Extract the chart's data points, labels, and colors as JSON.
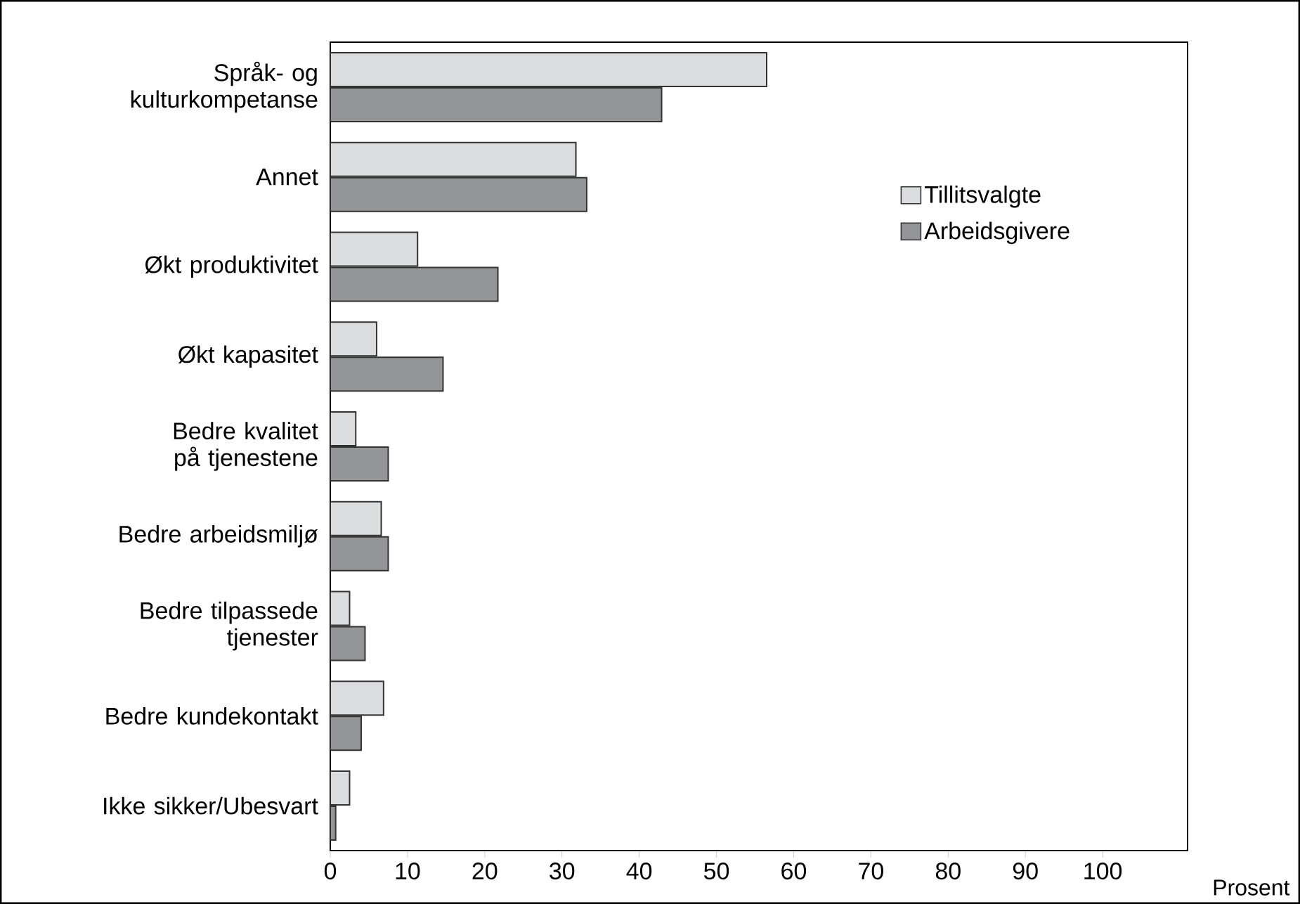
{
  "chart_data": {
    "type": "bar",
    "orientation": "horizontal",
    "xlabel": "Prosent",
    "categories": [
      "Språk- og kulturkompetanse",
      "Annet",
      "Økt produktivitet",
      "Økt kapasitet",
      "Bedre kvalitet på tjenestene",
      "Bedre arbeidsmiljø",
      "Bedre tilpassede tjenester",
      "Bedre kundekontakt",
      "Ikke sikker/Ubesvart"
    ],
    "series": [
      {
        "name": "Tillitsvalgte",
        "color": "#dcdddf",
        "values": [
          56.5,
          31.8,
          11.3,
          6.0,
          3.3,
          6.6,
          2.5,
          6.9,
          2.5
        ]
      },
      {
        "name": "Arbeidsgivere",
        "color": "#939598",
        "values": [
          42.9,
          33.2,
          21.7,
          14.6,
          7.5,
          7.5,
          4.5,
          4.0,
          0.7
        ]
      }
    ],
    "xlim": [
      0,
      111
    ],
    "xticks": [
      0,
      10,
      20,
      30,
      40,
      50,
      60,
      70,
      80,
      90,
      100
    ],
    "legend": "top right",
    "grid": false
  }
}
